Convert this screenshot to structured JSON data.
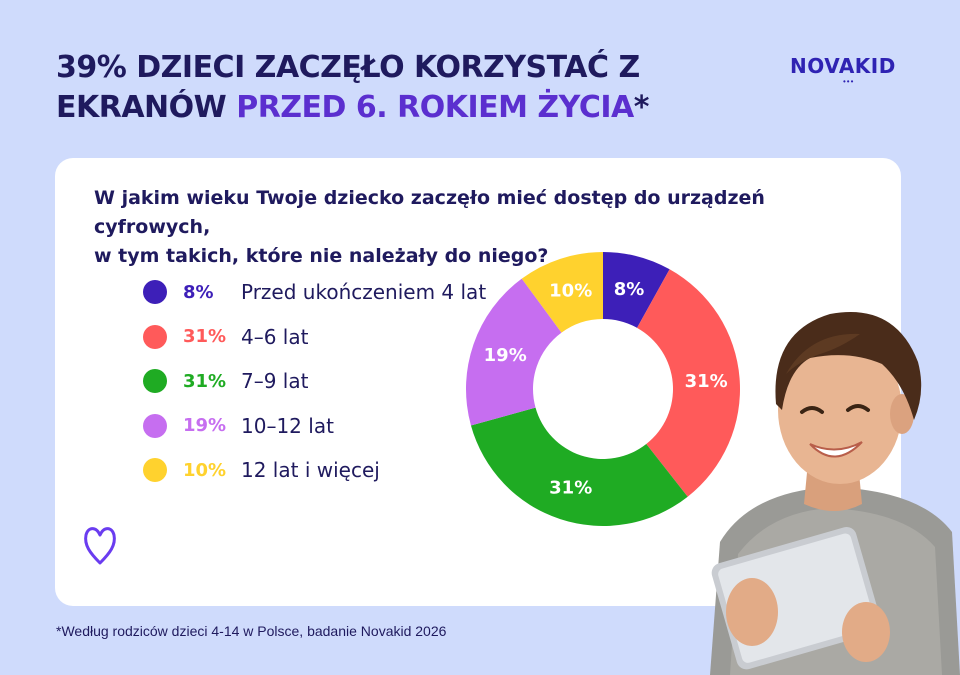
{
  "headline": {
    "part1": "39% DZIECI ZACZĘŁO KORZYSTAĆ Z",
    "part2": "EKRANÓW ",
    "accent": "PRZED 6. ROKIEM ŻYCIA",
    "asterisk": "*"
  },
  "logo": {
    "text": "NOVAKID",
    "dots": "•••"
  },
  "question": {
    "line1": "W jakim wieku Twoje dziecko zaczęło mieć dostęp do urządzeń cyfrowych,",
    "line2": "w tym takich, które nie należały do niego?"
  },
  "chart_data": {
    "type": "pie",
    "donut": true,
    "categories": [
      "Przed ukończeniem 4 lat",
      "4–6 lat",
      "7–9 lat",
      "10–12 lat",
      "12 lat i więcej"
    ],
    "values": [
      8,
      31,
      31,
      19,
      10
    ],
    "labels": [
      "8%",
      "31%",
      "31%",
      "19%",
      "10%"
    ],
    "colors": [
      "#3d1fb8",
      "#ff5a5a",
      "#1fab23",
      "#c66ef0",
      "#ffd22e"
    ],
    "legend_placement": "left"
  },
  "footnote": "*Według rodziców dzieci 4-14 w Polsce, badanie Novakid 2026",
  "icons": {
    "decor": "heart-icon",
    "photo": "boy-with-tablet"
  }
}
